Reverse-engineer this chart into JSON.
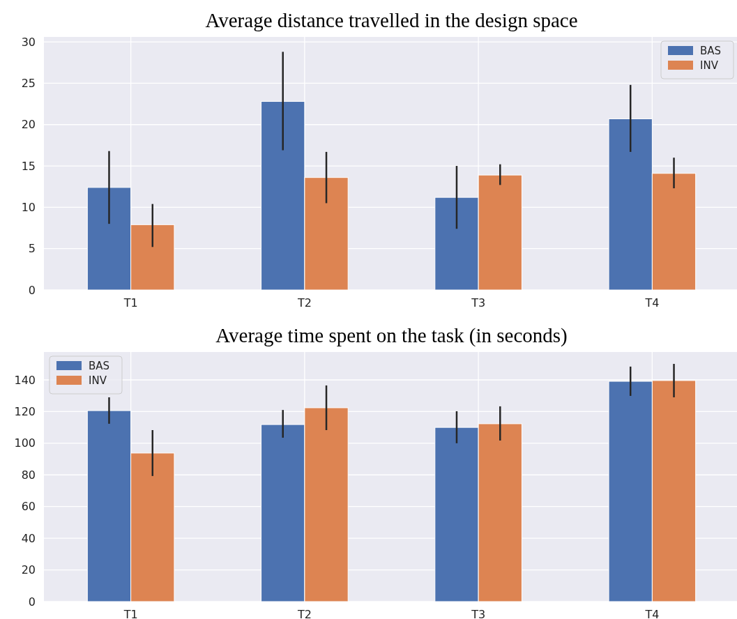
{
  "chart_data": [
    {
      "type": "bar",
      "title": "Average distance travelled in the design space",
      "categories": [
        "T1",
        "T2",
        "T3",
        "T4"
      ],
      "series": [
        {
          "name": "BAS",
          "color": "#4c72b0",
          "values": [
            12.4,
            22.8,
            11.2,
            20.7
          ],
          "errors": [
            [
              8.0,
              16.8
            ],
            [
              16.9,
              28.8
            ],
            [
              7.4,
              15.0
            ],
            [
              16.7,
              24.8
            ]
          ]
        },
        {
          "name": "INV",
          "color": "#dd8452",
          "values": [
            7.9,
            13.6,
            13.9,
            14.1
          ],
          "errors": [
            [
              5.2,
              10.4
            ],
            [
              10.5,
              16.7
            ],
            [
              12.7,
              15.2
            ],
            [
              12.3,
              16.0
            ]
          ]
        }
      ],
      "ylim": [
        0,
        30.6
      ],
      "yticks": [
        0,
        5,
        10,
        15,
        20,
        25,
        30
      ],
      "grid": true,
      "legend": "top right"
    },
    {
      "type": "bar",
      "title": "Average time spent on the task (in seconds)",
      "categories": [
        "T1",
        "T2",
        "T3",
        "T4"
      ],
      "series": [
        {
          "name": "BAS",
          "color": "#4c72b0",
          "values": [
            120.6,
            111.8,
            110,
            139.1
          ],
          "errors": [
            [
              112.3,
              129
            ],
            [
              103.5,
              121
            ],
            [
              100,
              120.2
            ],
            [
              129.9,
              148.4
            ]
          ]
        },
        {
          "name": "INV",
          "color": "#dd8452",
          "values": [
            93.8,
            122.4,
            112.3,
            139.6
          ],
          "errors": [
            [
              79.3,
              108.3
            ],
            [
              108.3,
              136.5
            ],
            [
              101.7,
              123.3
            ],
            [
              129,
              150.1
            ]
          ]
        }
      ],
      "ylim": [
        0,
        157.6
      ],
      "yticks": [
        0,
        20,
        40,
        60,
        80,
        100,
        120,
        140
      ],
      "grid": true,
      "legend": "top left"
    }
  ]
}
